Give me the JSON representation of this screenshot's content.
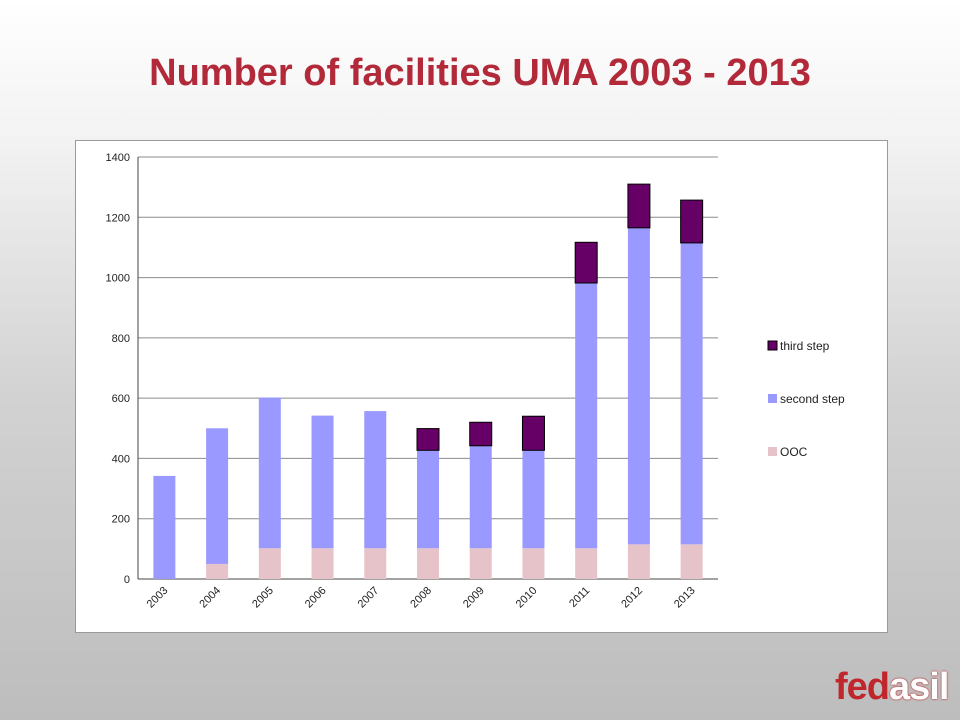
{
  "slide": {
    "title": "Number of facilities UMA 2003 - 2013"
  },
  "logo": {
    "part1": "fed",
    "part2": "asil",
    "full": "fedasil"
  },
  "colors": {
    "third_step": "#660066",
    "second_step": "#9999ff",
    "ooc": "#e6c3c8",
    "title": "#b22a3a",
    "gridline": "#8c8c8c"
  },
  "chart_data": {
    "type": "bar",
    "stacked": true,
    "title": "",
    "xlabel": "",
    "ylabel": "",
    "ylim": [
      0,
      1400
    ],
    "yticks": [
      0,
      200,
      400,
      600,
      800,
      1000,
      1200,
      1400
    ],
    "grid": true,
    "legend_position": "right",
    "categories": [
      "2003",
      "2004",
      "2005",
      "2006",
      "2007",
      "2008",
      "2009",
      "2010",
      "2011",
      "2012",
      "2013"
    ],
    "series": [
      {
        "name": "OOC",
        "color": "#e6c3c8",
        "values": [
          0,
          50,
          102,
          102,
          102,
          102,
          102,
          102,
          102,
          115,
          115
        ]
      },
      {
        "name": "second step",
        "color": "#9999ff",
        "values": [
          342,
          450,
          500,
          440,
          455,
          325,
          340,
          325,
          880,
          1050,
          1000
        ]
      },
      {
        "name": "third step",
        "color": "#660066",
        "values": [
          0,
          0,
          0,
          0,
          0,
          72,
          78,
          113,
          135,
          145,
          142
        ]
      }
    ],
    "legend_order": [
      "third step",
      "second step",
      "OOC"
    ]
  }
}
